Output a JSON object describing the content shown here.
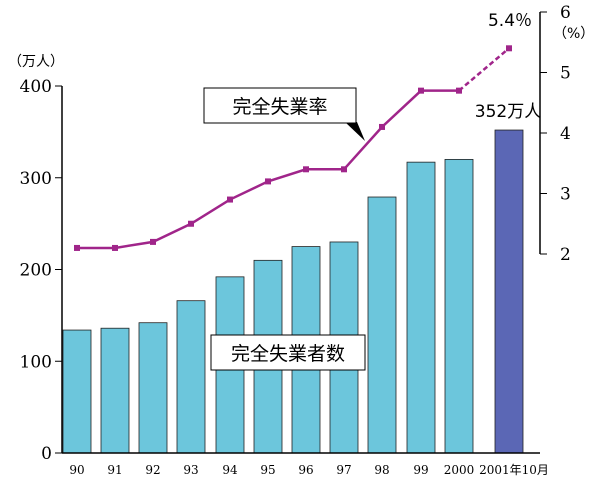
{
  "chart_data": {
    "type": "bar+line",
    "categories": [
      "90",
      "91",
      "92",
      "93",
      "94",
      "95",
      "96",
      "97",
      "98",
      "99",
      "2000",
      "2001年10月"
    ],
    "series": [
      {
        "name": "完全失業者数",
        "axis": "left",
        "type": "bar",
        "values": [
          134,
          136,
          142,
          166,
          192,
          210,
          225,
          230,
          279,
          317,
          320,
          352
        ]
      },
      {
        "name": "完全失業率",
        "axis": "right",
        "type": "line",
        "values": [
          2.1,
          2.1,
          2.2,
          2.5,
          2.9,
          3.2,
          3.4,
          3.4,
          4.1,
          4.7,
          4.7,
          5.4
        ]
      }
    ],
    "left_axis": {
      "unit": "（万人）",
      "ylim": [
        0,
        400
      ],
      "ticks": [
        "0",
        "100",
        "200",
        "300",
        "400"
      ]
    },
    "right_axis": {
      "unit": "（%）",
      "ylim": [
        2,
        6
      ],
      "ticks": [
        "2",
        "3",
        "4",
        "5",
        "6"
      ]
    },
    "annotations": {
      "rate_label": "完全失業率",
      "count_label": "完全失業者数",
      "last_count": "352万人",
      "last_rate": "5.4％"
    },
    "colors": {
      "bar": "#6cc6dc",
      "bar_highlight": "#5b67b5",
      "line": "#a0258a"
    }
  }
}
